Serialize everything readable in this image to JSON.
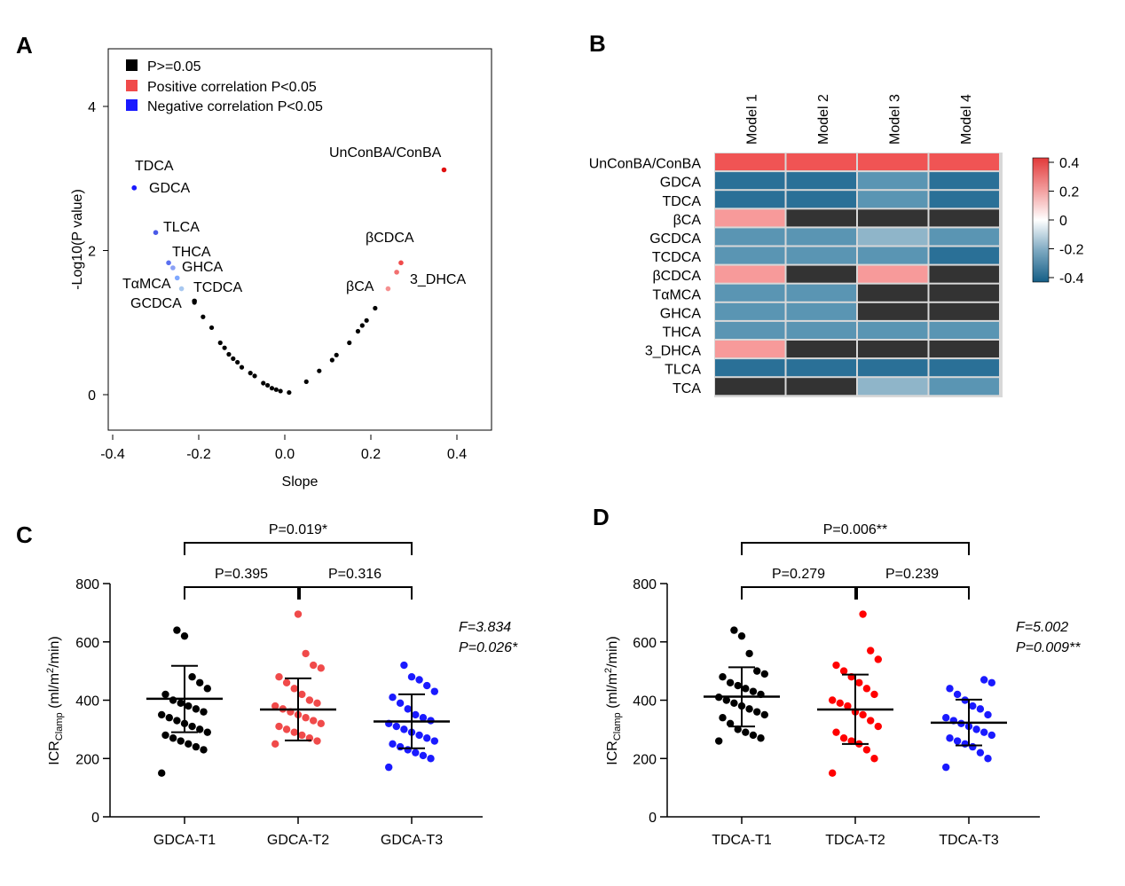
{
  "panel_labels": {
    "a": "A",
    "b": "B",
    "c": "C",
    "d": "D"
  },
  "colors": {
    "nonsig": "#000000",
    "positive": "#f04a4a",
    "negative": "#1a1aff",
    "heat_pos_strong": "#f05454",
    "heat_pos_mid": "#f79a9a",
    "heat_neg_strong": "#2a7097",
    "heat_neg_mid": "#5a95b3",
    "heat_neg_light": "#8fb5c9",
    "heat_na": "#333333"
  },
  "chart_data": [
    {
      "type": "scatter",
      "xlabel": "Slope",
      "ylabel": "-Log10(P value)",
      "xlim": [
        -0.4,
        0.4
      ],
      "ylim": [
        0,
        4
      ],
      "xticks": [
        "-0.4",
        "-0.2",
        "0.0",
        "0.2",
        "0.4"
      ],
      "yticks": [
        "0",
        "2",
        "4"
      ],
      "legend": [
        "P>=0.05",
        "Positive correlation P<0.05",
        "Negative correlation P<0.05"
      ],
      "legend_position": "top-left",
      "points_nonsig": [
        [
          -0.21,
          1.28
        ],
        [
          -0.19,
          1.08
        ],
        [
          -0.17,
          0.93
        ],
        [
          -0.15,
          0.72
        ],
        [
          -0.14,
          0.65
        ],
        [
          -0.13,
          0.56
        ],
        [
          -0.12,
          0.5
        ],
        [
          -0.11,
          0.45
        ],
        [
          -0.1,
          0.38
        ],
        [
          -0.08,
          0.3
        ],
        [
          -0.07,
          0.26
        ],
        [
          -0.05,
          0.16
        ],
        [
          -0.04,
          0.13
        ],
        [
          -0.03,
          0.09
        ],
        [
          -0.02,
          0.07
        ],
        [
          -0.01,
          0.05
        ],
        [
          0.01,
          0.03
        ],
        [
          0.05,
          0.18
        ],
        [
          0.08,
          0.33
        ],
        [
          0.11,
          0.48
        ],
        [
          0.12,
          0.55
        ],
        [
          0.15,
          0.72
        ],
        [
          0.17,
          0.88
        ],
        [
          0.18,
          0.96
        ],
        [
          0.19,
          1.03
        ],
        [
          0.21,
          1.2
        ]
      ],
      "points_positive": [
        {
          "name": "UnConBA/ConBA",
          "x": 0.37,
          "y": 3.12
        },
        {
          "name": "βCDCA",
          "x": 0.27,
          "y": 1.83
        },
        {
          "name": "3_DHCA",
          "x": 0.26,
          "y": 1.7
        },
        {
          "name": "βCA",
          "x": 0.24,
          "y": 1.47
        }
      ],
      "points_negative": [
        {
          "name": "TDCA",
          "x": -0.35,
          "y": 2.87
        },
        {
          "name": "GDCA",
          "x": -0.35,
          "y": 2.87
        },
        {
          "name": "TLCA",
          "x": -0.3,
          "y": 2.25
        },
        {
          "name": "THCA",
          "x": -0.27,
          "y": 1.83
        },
        {
          "name": "GHCA",
          "x": -0.26,
          "y": 1.76
        },
        {
          "name": "TαMCA",
          "x": -0.25,
          "y": 1.62
        },
        {
          "name": "TCDCA",
          "x": -0.24,
          "y": 1.47
        },
        {
          "name": "GCDCA",
          "x": -0.21,
          "y": 1.3
        }
      ],
      "point_labels": [
        {
          "text": "TDCA"
        },
        {
          "text": "GDCA"
        },
        {
          "text": "TLCA"
        },
        {
          "text": "THCA"
        },
        {
          "text": "GHCA"
        },
        {
          "text": "TαMCA"
        },
        {
          "text": "TCDCA"
        },
        {
          "text": "GCDCA"
        },
        {
          "text": "UnConBA/ConBA"
        },
        {
          "text": "βCDCA"
        },
        {
          "text": "3_DHCA"
        },
        {
          "text": "βCA"
        }
      ]
    },
    {
      "type": "heatmap",
      "columns": [
        "Model 1",
        "Model 2",
        "Model 3",
        "Model 4"
      ],
      "rows": [
        "UnConBA/ConBA",
        "GDCA",
        "TDCA",
        "βCA",
        "GCDCA",
        "TCDCA",
        "βCDCA",
        "TαMCA",
        "GHCA",
        "THCA",
        "3_DHCA",
        "TLCA",
        "TCA"
      ],
      "values": [
        [
          0.38,
          0.33,
          0.35,
          0.35
        ],
        [
          -0.38,
          -0.35,
          -0.3,
          -0.36
        ],
        [
          -0.38,
          -0.36,
          -0.32,
          -0.36
        ],
        [
          0.22,
          null,
          null,
          null
        ],
        [
          -0.27,
          -0.27,
          -0.23,
          -0.3
        ],
        [
          -0.29,
          -0.29,
          -0.28,
          -0.38
        ],
        [
          0.28,
          null,
          0.2,
          null
        ],
        [
          -0.28,
          -0.26,
          null,
          null
        ],
        [
          -0.3,
          -0.27,
          null,
          null
        ],
        [
          -0.3,
          -0.3,
          -0.28,
          -0.26
        ],
        [
          0.25,
          null,
          null,
          null
        ],
        [
          -0.34,
          -0.36,
          -0.38,
          -0.44
        ],
        [
          null,
          null,
          -0.22,
          -0.27
        ]
      ],
      "colorbar_ticks": [
        "0.4",
        "0.2",
        "0",
        "-0.2",
        "-0.4"
      ],
      "colorbar_range": [
        -0.4,
        0.4
      ]
    },
    {
      "type": "scatter",
      "ylabel_main": "ICR",
      "ylabel_sub": "Clamp",
      "ylabel_rest": " (ml/m",
      "ylabel_sup": "2",
      "ylabel_end": "/min)",
      "ylim": [
        0,
        800
      ],
      "yticks": [
        "0",
        "200",
        "400",
        "600",
        "800"
      ],
      "categories": [
        "GDCA-T1",
        "GDCA-T2",
        "GDCA-T3"
      ],
      "series": [
        {
          "name": "GDCA-T1",
          "color": "#000000",
          "mean": 405,
          "sd_low": 290,
          "sd_high": 518,
          "values": [
            150,
            230,
            240,
            250,
            260,
            270,
            280,
            290,
            300,
            310,
            320,
            330,
            340,
            350,
            360,
            370,
            380,
            390,
            400,
            420,
            440,
            460,
            480,
            620,
            640
          ]
        },
        {
          "name": "GDCA-T2",
          "color": "#f04a4a",
          "mean": 368,
          "sd_low": 262,
          "sd_high": 475,
          "values": [
            250,
            260,
            270,
            280,
            290,
            300,
            310,
            320,
            330,
            340,
            350,
            360,
            370,
            380,
            390,
            400,
            420,
            440,
            460,
            480,
            510,
            520,
            560,
            695
          ]
        },
        {
          "name": "GDCA-T3",
          "color": "#1a1aff",
          "mean": 327,
          "sd_low": 235,
          "sd_high": 420,
          "values": [
            170,
            200,
            210,
            220,
            230,
            240,
            250,
            260,
            270,
            280,
            290,
            300,
            310,
            320,
            330,
            340,
            350,
            370,
            390,
            410,
            430,
            450,
            470,
            480,
            520
          ]
        }
      ],
      "comparisons": [
        {
          "label": "P=0.019*",
          "from": 0,
          "to": 2,
          "level": 2
        },
        {
          "label": "P=0.395",
          "from": 0,
          "to": 1,
          "level": 1
        },
        {
          "label": "P=0.316",
          "from": 1,
          "to": 2,
          "level": 1
        }
      ],
      "stats": {
        "f": "F=3.834",
        "p": "P=0.026*"
      }
    },
    {
      "type": "scatter",
      "ylabel_main": "ICR",
      "ylabel_sub": "Clamp",
      "ylabel_rest": " (ml/m",
      "ylabel_sup": "2",
      "ylabel_end": "/min)",
      "ylim": [
        0,
        800
      ],
      "yticks": [
        "0",
        "200",
        "400",
        "600",
        "800"
      ],
      "categories": [
        "TDCA-T1",
        "TDCA-T2",
        "TDCA-T3"
      ],
      "series": [
        {
          "name": "TDCA-T1",
          "color": "#000000",
          "mean": 412,
          "sd_low": 310,
          "sd_high": 513,
          "values": [
            260,
            270,
            280,
            290,
            300,
            320,
            340,
            350,
            360,
            370,
            380,
            390,
            400,
            410,
            420,
            430,
            440,
            450,
            460,
            480,
            490,
            500,
            560,
            620,
            640
          ]
        },
        {
          "name": "TDCA-T2",
          "color": "#ff0000",
          "mean": 368,
          "sd_low": 250,
          "sd_high": 488,
          "values": [
            150,
            200,
            230,
            250,
            260,
            270,
            290,
            310,
            330,
            350,
            360,
            380,
            390,
            400,
            420,
            440,
            460,
            480,
            500,
            520,
            540,
            570,
            695
          ]
        },
        {
          "name": "TDCA-T3",
          "color": "#1a1aff",
          "mean": 323,
          "sd_low": 245,
          "sd_high": 402,
          "values": [
            170,
            200,
            220,
            240,
            250,
            260,
            270,
            280,
            290,
            300,
            310,
            320,
            330,
            340,
            350,
            370,
            380,
            400,
            420,
            440,
            460,
            470
          ]
        }
      ],
      "comparisons": [
        {
          "label": "P=0.006**",
          "from": 0,
          "to": 2,
          "level": 2
        },
        {
          "label": "P=0.279",
          "from": 0,
          "to": 1,
          "level": 1
        },
        {
          "label": "P=0.239",
          "from": 1,
          "to": 2,
          "level": 1
        }
      ],
      "stats": {
        "f": "F=5.002",
        "p": "P=0.009**"
      }
    }
  ]
}
